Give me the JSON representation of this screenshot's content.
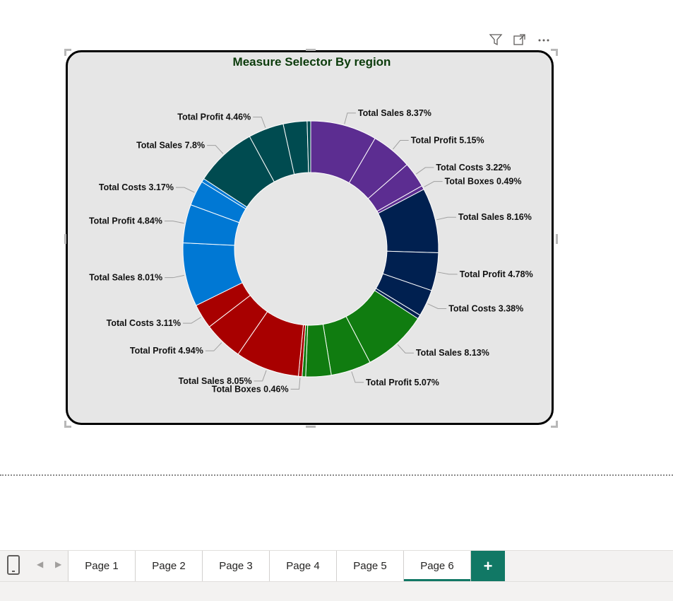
{
  "visual_header": {
    "filter_icon": "filter-icon",
    "focus_icon": "focus-mode-icon",
    "more_icon": "more-options-icon"
  },
  "chart_data": {
    "type": "donut",
    "title": "Measure Selector By region",
    "slices": [
      {
        "label": "Total Sales 8.37%",
        "value": 8.37,
        "color": "#5c2d91"
      },
      {
        "label": "Total Profit 5.15%",
        "value": 5.15,
        "color": "#5c2d91"
      },
      {
        "label": "Total Costs 3.22%",
        "value": 3.22,
        "color": "#5c2d91"
      },
      {
        "label": "Total Boxes 0.49%",
        "value": 0.49,
        "color": "#5c2d91"
      },
      {
        "label": "Total Sales 8.16%",
        "value": 8.16,
        "color": "#002050"
      },
      {
        "label": "Total Profit 4.78%",
        "value": 4.78,
        "color": "#002050"
      },
      {
        "label": "Total Costs 3.38%",
        "value": 3.38,
        "color": "#002050"
      },
      {
        "label": "",
        "value": 0.5,
        "color": "#002050"
      },
      {
        "label": "Total Sales 8.13%",
        "value": 8.13,
        "color": "#107c10"
      },
      {
        "label": "Total Profit 5.07%",
        "value": 5.07,
        "color": "#107c10"
      },
      {
        "label": "",
        "value": 3.2,
        "color": "#107c10"
      },
      {
        "label": "",
        "value": 0.45,
        "color": "#107c10"
      },
      {
        "label": "Total Boxes 0.46%",
        "value": 0.46,
        "color": "#a80000"
      },
      {
        "label": "Total Sales 8.05%",
        "value": 8.05,
        "color": "#a80000"
      },
      {
        "label": "Total Profit 4.94%",
        "value": 4.94,
        "color": "#a80000"
      },
      {
        "label": "Total Costs 3.11%",
        "value": 3.11,
        "color": "#a80000"
      },
      {
        "label": "Total Sales 8.01%",
        "value": 8.01,
        "color": "#0078d4"
      },
      {
        "label": "Total Profit 4.84%",
        "value": 4.84,
        "color": "#0078d4"
      },
      {
        "label": "Total Costs 3.17%",
        "value": 3.17,
        "color": "#0078d4"
      },
      {
        "label": "",
        "value": 0.45,
        "color": "#0078d4"
      },
      {
        "label": "Total Sales 7.8%",
        "value": 7.8,
        "color": "#004b50"
      },
      {
        "label": "Total Profit 4.46%",
        "value": 4.46,
        "color": "#004b50"
      },
      {
        "label": "",
        "value": 3.0,
        "color": "#004b50"
      },
      {
        "label": "",
        "value": 0.45,
        "color": "#004b50"
      }
    ]
  },
  "tabs": {
    "items": [
      "Page 1",
      "Page 2",
      "Page 3",
      "Page 4",
      "Page 5",
      "Page 6"
    ],
    "active_index": 5,
    "add_label": "+",
    "accent": "#117865"
  }
}
